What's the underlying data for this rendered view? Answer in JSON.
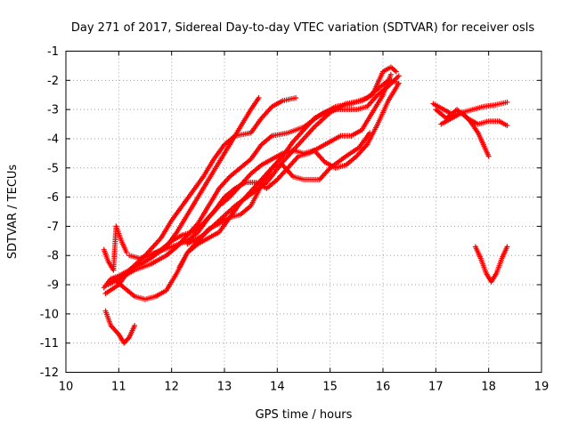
{
  "chart_data": {
    "type": "scatter",
    "title": "Day 271 of 2017, Sidereal Day-to-day VTEC variation (SDTVAR) for receiver osls",
    "xlabel": "GPS time / hours",
    "ylabel": "SDTVAR / TECUs",
    "xlim": [
      10,
      19
    ],
    "ylim": [
      -12,
      -1
    ],
    "xticks": [
      10,
      11,
      12,
      13,
      14,
      15,
      16,
      17,
      18,
      19
    ],
    "yticks": [
      -12,
      -11,
      -10,
      -9,
      -8,
      -7,
      -6,
      -5,
      -4,
      -3,
      -2,
      -1
    ],
    "grid": true,
    "marker": "+",
    "color": "#ff0000",
    "series": [
      {
        "name": "trace-1",
        "points": [
          [
            10.72,
            -9.1
          ],
          [
            10.85,
            -8.8
          ],
          [
            11.0,
            -8.7
          ],
          [
            11.3,
            -8.4
          ],
          [
            11.6,
            -8.1
          ],
          [
            11.9,
            -7.7
          ],
          [
            12.1,
            -7.2
          ],
          [
            12.3,
            -6.6
          ],
          [
            12.5,
            -6.0
          ],
          [
            12.7,
            -5.4
          ],
          [
            12.9,
            -4.8
          ],
          [
            13.1,
            -4.2
          ],
          [
            13.3,
            -3.6
          ],
          [
            13.5,
            -3.0
          ],
          [
            13.65,
            -2.6
          ]
        ]
      },
      {
        "name": "trace-2",
        "points": [
          [
            10.75,
            -9.3
          ],
          [
            11.0,
            -9.0
          ],
          [
            11.2,
            -8.5
          ],
          [
            11.5,
            -8.0
          ],
          [
            11.8,
            -7.4
          ],
          [
            12.0,
            -6.8
          ],
          [
            12.2,
            -6.3
          ],
          [
            12.4,
            -5.8
          ],
          [
            12.6,
            -5.3
          ],
          [
            12.8,
            -4.7
          ],
          [
            13.0,
            -4.2
          ],
          [
            13.2,
            -3.9
          ],
          [
            13.5,
            -3.8
          ],
          [
            13.7,
            -3.3
          ],
          [
            13.9,
            -2.9
          ],
          [
            14.1,
            -2.7
          ],
          [
            14.35,
            -2.6
          ]
        ]
      },
      {
        "name": "trace-3",
        "points": [
          [
            10.8,
            -9.0
          ],
          [
            11.0,
            -8.8
          ],
          [
            11.3,
            -8.5
          ],
          [
            11.6,
            -8.3
          ],
          [
            11.9,
            -8.0
          ],
          [
            12.1,
            -7.7
          ],
          [
            12.3,
            -7.3
          ],
          [
            12.5,
            -6.9
          ],
          [
            12.7,
            -6.3
          ],
          [
            12.9,
            -5.7
          ],
          [
            13.1,
            -5.3
          ],
          [
            13.3,
            -5.0
          ],
          [
            13.5,
            -4.7
          ],
          [
            13.7,
            -4.2
          ],
          [
            13.9,
            -3.9
          ],
          [
            14.2,
            -3.8
          ],
          [
            14.5,
            -3.6
          ],
          [
            14.8,
            -3.2
          ],
          [
            15.1,
            -2.9
          ],
          [
            15.4,
            -2.8
          ],
          [
            15.7,
            -2.6
          ],
          [
            15.9,
            -2.3
          ],
          [
            16.1,
            -2.0
          ],
          [
            16.25,
            -2.05
          ]
        ]
      },
      {
        "name": "trace-4",
        "points": [
          [
            10.9,
            -8.8
          ],
          [
            11.1,
            -9.1
          ],
          [
            11.3,
            -9.4
          ],
          [
            11.5,
            -9.5
          ],
          [
            11.7,
            -9.4
          ],
          [
            11.9,
            -9.2
          ],
          [
            12.1,
            -8.6
          ],
          [
            12.3,
            -7.9
          ],
          [
            12.5,
            -7.5
          ],
          [
            12.7,
            -7.1
          ],
          [
            12.9,
            -6.9
          ],
          [
            13.1,
            -6.7
          ],
          [
            13.3,
            -6.6
          ],
          [
            13.5,
            -6.3
          ],
          [
            13.7,
            -5.6
          ],
          [
            13.9,
            -5.0
          ],
          [
            14.1,
            -4.9
          ],
          [
            14.3,
            -5.3
          ],
          [
            14.5,
            -5.4
          ],
          [
            14.8,
            -5.4
          ],
          [
            15.0,
            -5.0
          ],
          [
            15.3,
            -4.6
          ],
          [
            15.55,
            -4.3
          ],
          [
            15.75,
            -3.8
          ]
        ]
      },
      {
        "name": "trace-5",
        "points": [
          [
            11.2,
            -8.0
          ],
          [
            11.4,
            -8.1
          ],
          [
            11.6,
            -8.0
          ],
          [
            11.8,
            -7.8
          ],
          [
            12.0,
            -7.5
          ],
          [
            12.2,
            -7.3
          ],
          [
            12.4,
            -7.2
          ],
          [
            12.6,
            -6.9
          ],
          [
            12.8,
            -6.5
          ],
          [
            13.0,
            -6.0
          ],
          [
            13.2,
            -5.7
          ],
          [
            13.4,
            -5.5
          ],
          [
            13.6,
            -5.5
          ],
          [
            13.8,
            -5.7
          ],
          [
            14.0,
            -5.4
          ],
          [
            14.2,
            -5.0
          ],
          [
            14.4,
            -4.6
          ],
          [
            14.6,
            -4.5
          ],
          [
            14.8,
            -4.3
          ],
          [
            15.0,
            -4.1
          ],
          [
            15.2,
            -3.9
          ],
          [
            15.4,
            -3.9
          ],
          [
            15.6,
            -3.7
          ],
          [
            15.8,
            -3.1
          ],
          [
            16.0,
            -2.5
          ],
          [
            16.15,
            -1.8
          ]
        ]
      },
      {
        "name": "trace-6",
        "points": [
          [
            11.4,
            -8.1
          ],
          [
            11.7,
            -7.9
          ],
          [
            12.0,
            -7.7
          ],
          [
            12.3,
            -7.5
          ],
          [
            12.5,
            -7.2
          ],
          [
            12.7,
            -6.7
          ],
          [
            12.9,
            -6.3
          ],
          [
            13.1,
            -6.0
          ],
          [
            13.3,
            -5.6
          ],
          [
            13.5,
            -5.2
          ],
          [
            13.7,
            -4.9
          ],
          [
            13.9,
            -4.7
          ],
          [
            14.1,
            -4.5
          ],
          [
            14.3,
            -4.4
          ],
          [
            14.5,
            -4.5
          ],
          [
            14.7,
            -4.4
          ],
          [
            14.9,
            -4.8
          ],
          [
            15.1,
            -5.0
          ],
          [
            15.3,
            -4.9
          ],
          [
            15.5,
            -4.6
          ],
          [
            15.7,
            -4.2
          ],
          [
            15.9,
            -3.5
          ],
          [
            16.1,
            -2.7
          ],
          [
            16.3,
            -2.1
          ]
        ]
      },
      {
        "name": "trace-7",
        "points": [
          [
            12.15,
            -8.4
          ],
          [
            12.3,
            -7.9
          ],
          [
            12.5,
            -7.6
          ],
          [
            12.7,
            -7.4
          ],
          [
            12.9,
            -7.2
          ],
          [
            13.1,
            -6.7
          ],
          [
            13.3,
            -6.2
          ],
          [
            13.5,
            -5.8
          ],
          [
            13.7,
            -5.4
          ],
          [
            13.9,
            -5.0
          ],
          [
            14.1,
            -4.6
          ],
          [
            14.3,
            -4.1
          ],
          [
            14.5,
            -3.7
          ],
          [
            14.7,
            -3.3
          ],
          [
            14.9,
            -3.1
          ],
          [
            15.1,
            -3.0
          ],
          [
            15.3,
            -3.0
          ],
          [
            15.5,
            -3.0
          ],
          [
            15.7,
            -2.9
          ],
          [
            15.9,
            -2.5
          ],
          [
            16.1,
            -2.2
          ],
          [
            16.3,
            -1.85
          ]
        ]
      },
      {
        "name": "trace-8",
        "points": [
          [
            12.3,
            -7.6
          ],
          [
            12.6,
            -7.3
          ],
          [
            12.9,
            -6.8
          ],
          [
            13.2,
            -6.3
          ],
          [
            13.5,
            -5.9
          ],
          [
            13.8,
            -5.5
          ],
          [
            14.1,
            -4.8
          ],
          [
            14.4,
            -4.2
          ],
          [
            14.7,
            -3.6
          ],
          [
            15.0,
            -3.1
          ],
          [
            15.3,
            -2.8
          ],
          [
            15.6,
            -2.7
          ],
          [
            15.8,
            -2.5
          ],
          [
            16.0,
            -1.7
          ],
          [
            16.15,
            -1.55
          ],
          [
            16.25,
            -1.7
          ]
        ]
      },
      {
        "name": "segment-low-1",
        "points": [
          [
            10.75,
            -9.9
          ],
          [
            10.85,
            -10.4
          ],
          [
            11.0,
            -10.7
          ],
          [
            11.1,
            -11.0
          ],
          [
            11.2,
            -10.8
          ],
          [
            11.3,
            -10.4
          ]
        ]
      },
      {
        "name": "segment-low-2",
        "points": [
          [
            10.72,
            -7.8
          ],
          [
            10.8,
            -8.2
          ],
          [
            10.9,
            -8.5
          ],
          [
            10.95,
            -7.0
          ],
          [
            11.05,
            -7.5
          ],
          [
            11.15,
            -7.9
          ]
        ]
      },
      {
        "name": "segment-17a",
        "points": [
          [
            16.95,
            -2.8
          ],
          [
            17.15,
            -3.0
          ],
          [
            17.35,
            -3.2
          ],
          [
            17.5,
            -3.1
          ],
          [
            17.7,
            -3.0
          ],
          [
            17.9,
            -2.9
          ],
          [
            18.1,
            -2.85
          ],
          [
            18.35,
            -2.75
          ]
        ]
      },
      {
        "name": "segment-17b",
        "points": [
          [
            17.0,
            -3.0
          ],
          [
            17.2,
            -3.3
          ],
          [
            17.4,
            -3.0
          ],
          [
            17.6,
            -3.3
          ],
          [
            17.8,
            -3.5
          ],
          [
            18.0,
            -3.4
          ],
          [
            18.2,
            -3.4
          ],
          [
            18.35,
            -3.55
          ]
        ]
      },
      {
        "name": "segment-17c",
        "points": [
          [
            17.1,
            -3.5
          ],
          [
            17.3,
            -3.3
          ],
          [
            17.5,
            -3.1
          ],
          [
            17.65,
            -3.4
          ],
          [
            17.8,
            -3.8
          ],
          [
            17.9,
            -4.2
          ],
          [
            18.0,
            -4.6
          ]
        ]
      },
      {
        "name": "segment-18v",
        "points": [
          [
            17.75,
            -7.7
          ],
          [
            17.85,
            -8.1
          ],
          [
            17.95,
            -8.6
          ],
          [
            18.05,
            -8.9
          ],
          [
            18.15,
            -8.6
          ],
          [
            18.25,
            -8.1
          ],
          [
            18.35,
            -7.7
          ]
        ]
      }
    ]
  }
}
